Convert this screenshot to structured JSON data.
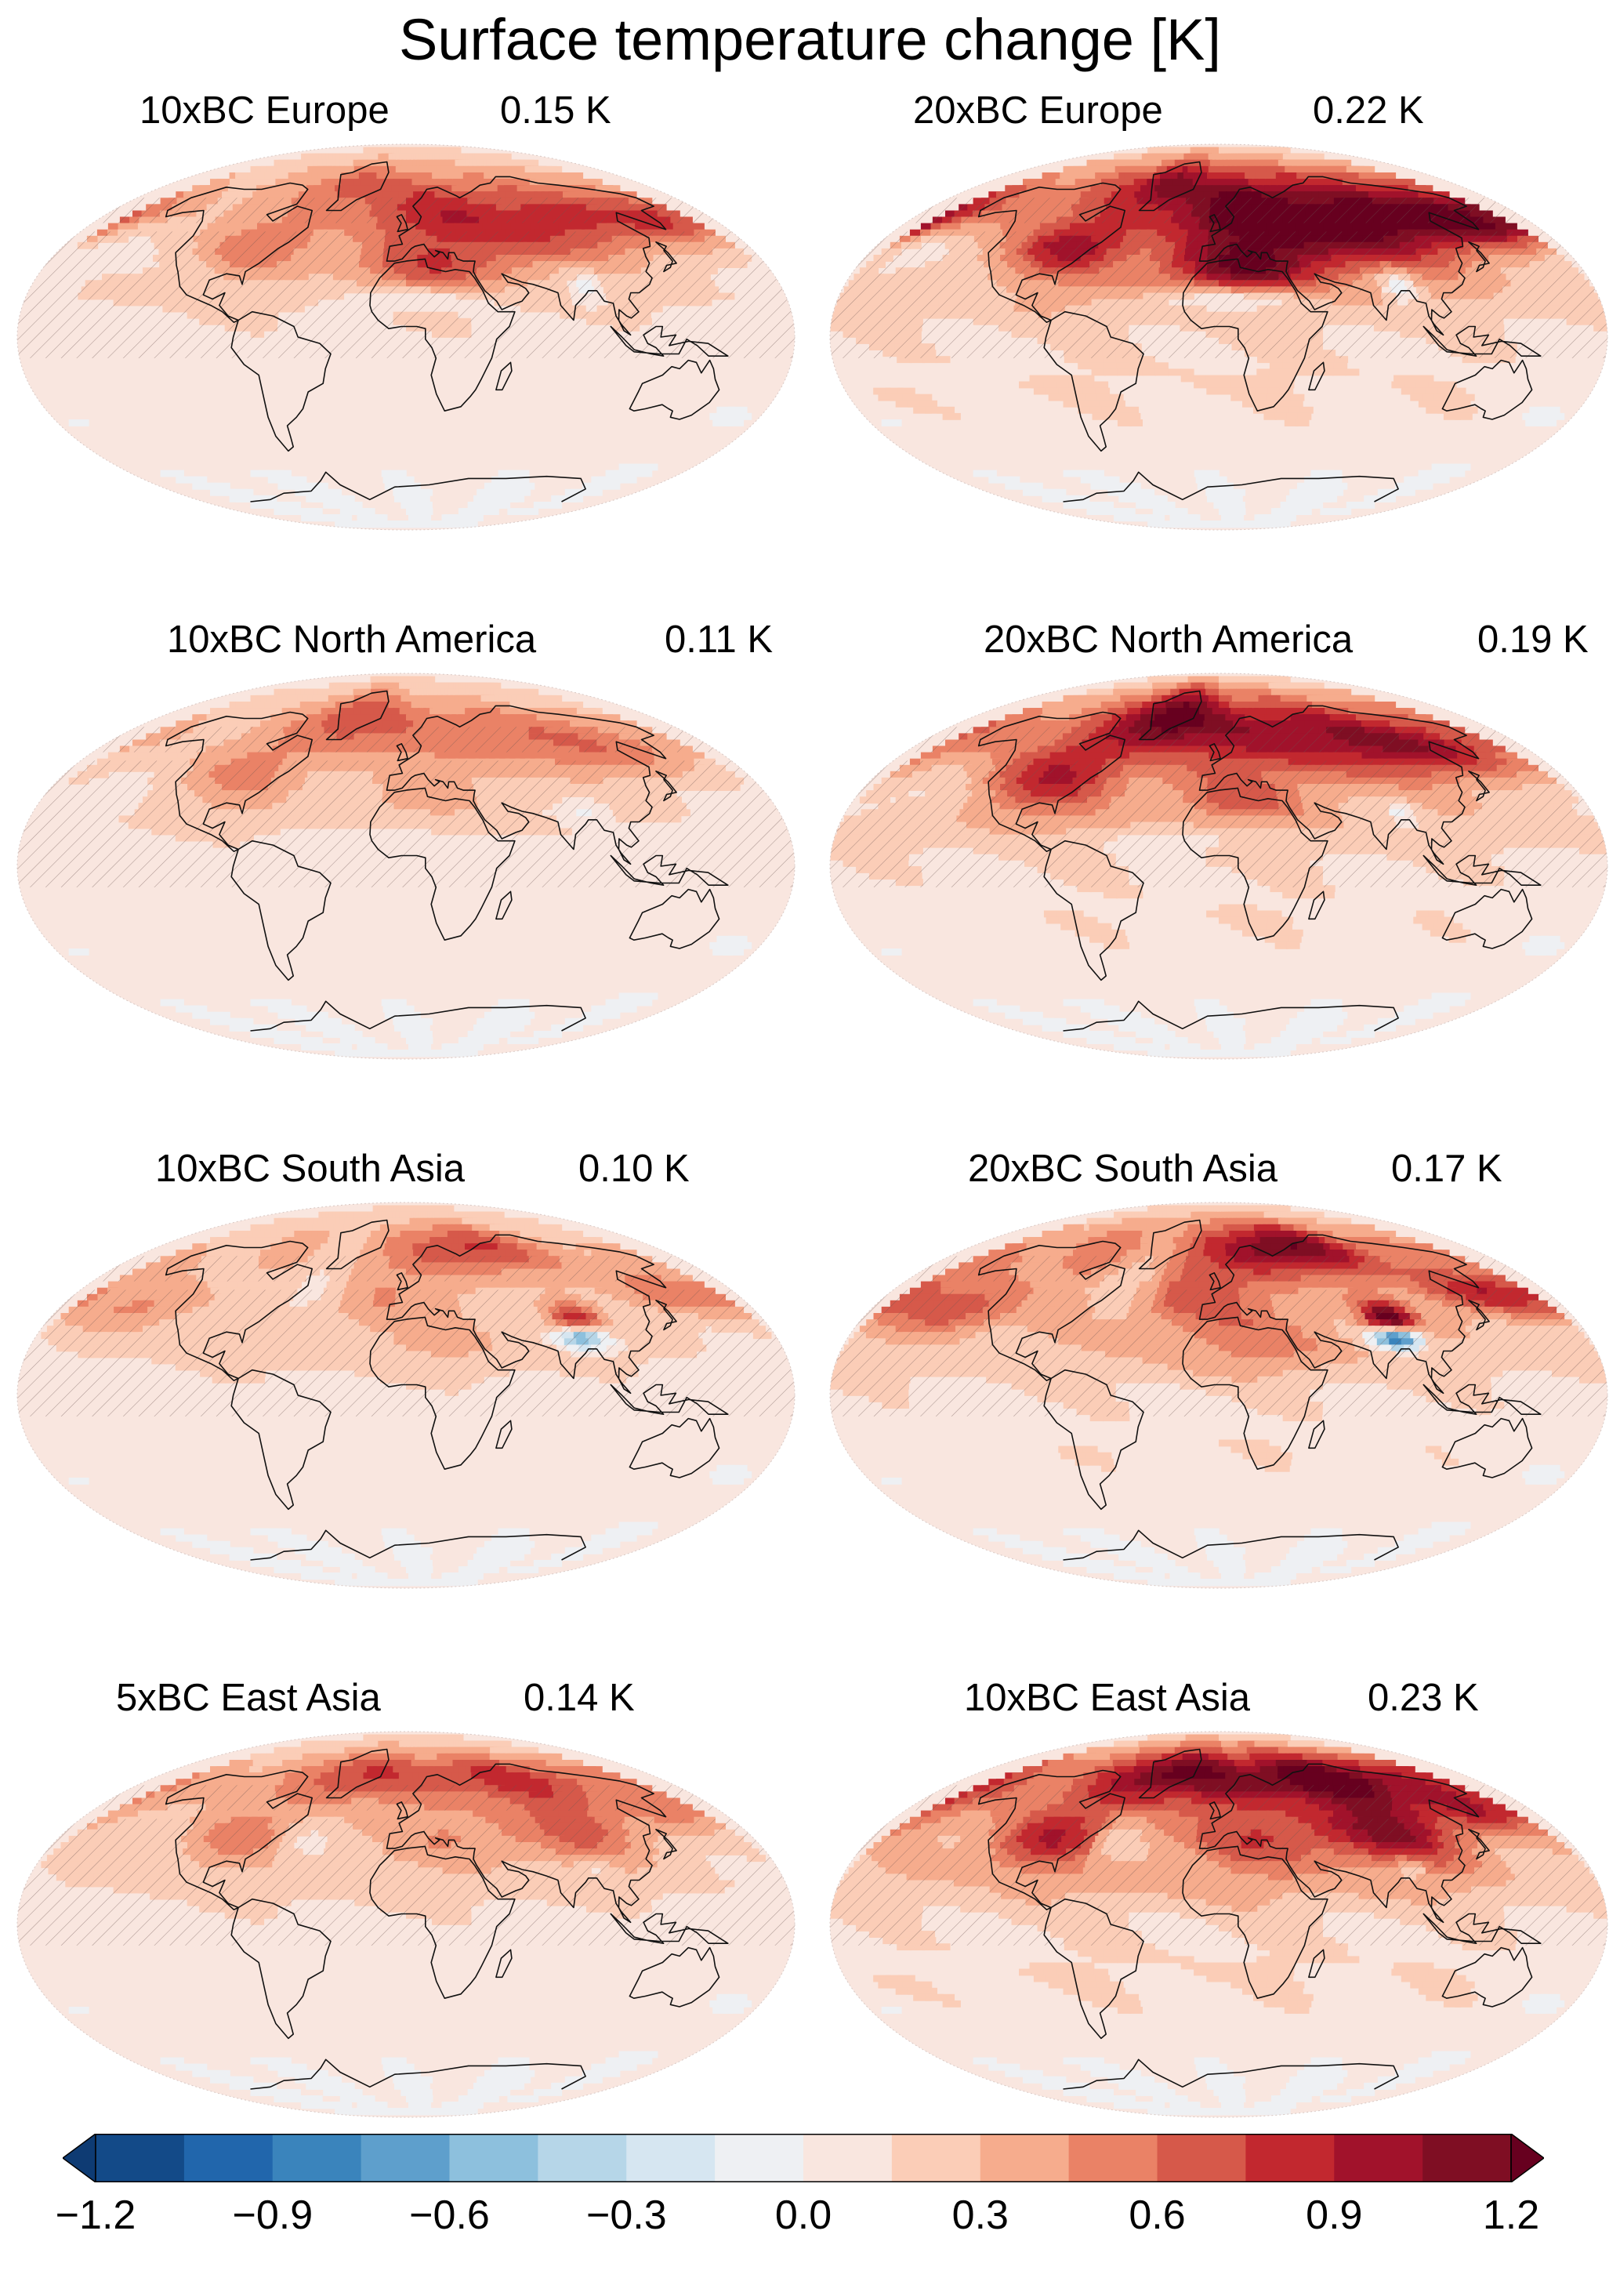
{
  "title": "Surface temperature change [K]",
  "panels": [
    {
      "label": "10xBC Europe",
      "value": "0.15 K",
      "pattern": "europe",
      "strength": 0.6
    },
    {
      "label": "20xBC Europe",
      "value": "0.22 K",
      "pattern": "europe",
      "strength": 1.0
    },
    {
      "label": "10xBC North America",
      "value": "0.11 K",
      "pattern": "namerica",
      "strength": 0.5
    },
    {
      "label": "20xBC North America",
      "value": "0.19 K",
      "pattern": "namerica",
      "strength": 0.9
    },
    {
      "label": "10xBC South Asia",
      "value": "0.10 K",
      "pattern": "sasia",
      "strength": 0.55
    },
    {
      "label": "20xBC South Asia",
      "value": "0.17 K",
      "pattern": "sasia",
      "strength": 0.85
    },
    {
      "label": "5xBC East Asia",
      "value": "0.14 K",
      "pattern": "easia",
      "strength": 0.6
    },
    {
      "label": "10xBC East Asia",
      "value": "0.23 K",
      "pattern": "easia",
      "strength": 1.0
    }
  ],
  "colorbar": {
    "min": -1.2,
    "max": 1.2,
    "colors": [
      "#134a88",
      "#2166ac",
      "#3a84bc",
      "#5e9fcc",
      "#8dc0dd",
      "#b6d6e8",
      "#d6e6f1",
      "#eef0f3",
      "#f9e6df",
      "#fbcdb7",
      "#f6ac8d",
      "#ea8266",
      "#d6594a",
      "#c2282f",
      "#a1122b",
      "#7f0e23"
    ],
    "under_color": "#0e3b73",
    "over_color": "#67001f",
    "tick_labels": [
      "−1.2",
      "−0.9",
      "−0.6",
      "−0.3",
      "0.0",
      "0.3",
      "0.6",
      "0.9",
      "1.2"
    ]
  }
}
